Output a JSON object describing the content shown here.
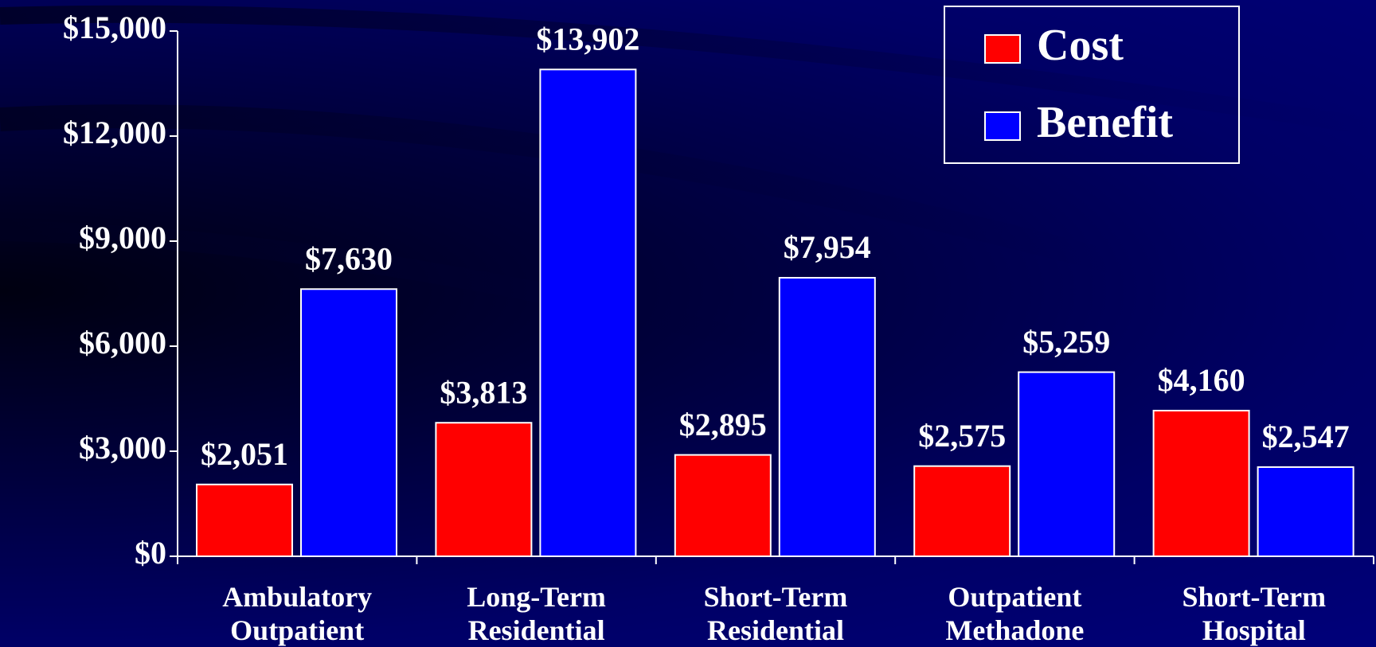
{
  "chart_data": {
    "type": "bar",
    "categories": [
      "Ambulatory Outpatient",
      "Long-Term Residential",
      "Short-Term Residential",
      "Outpatient Methadone",
      "Short-Term Hospital"
    ],
    "series": [
      {
        "name": "Cost",
        "color": "#ff0000",
        "values": [
          2051,
          3813,
          2895,
          2575,
          4160
        ],
        "value_labels": [
          "$2,051",
          "$3,813",
          "$2,895",
          "$2,575",
          "$4,160"
        ]
      },
      {
        "name": "Benefit",
        "color": "#0000ff",
        "values": [
          7630,
          13902,
          7954,
          5259,
          2547
        ],
        "value_labels": [
          "$7,630",
          "$13,902",
          "$7,954",
          "$5,259",
          "$2,547"
        ]
      }
    ],
    "ylim": [
      0,
      15000
    ],
    "yticks": [
      {
        "value": 0,
        "label": "$0"
      },
      {
        "value": 3000,
        "label": "$3,000"
      },
      {
        "value": 6000,
        "label": "$6,000"
      },
      {
        "value": 9000,
        "label": "$9,000"
      },
      {
        "value": 12000,
        "label": "$12,000"
      },
      {
        "value": 15000,
        "label": "$15,000"
      }
    ],
    "legend": "upper right"
  }
}
